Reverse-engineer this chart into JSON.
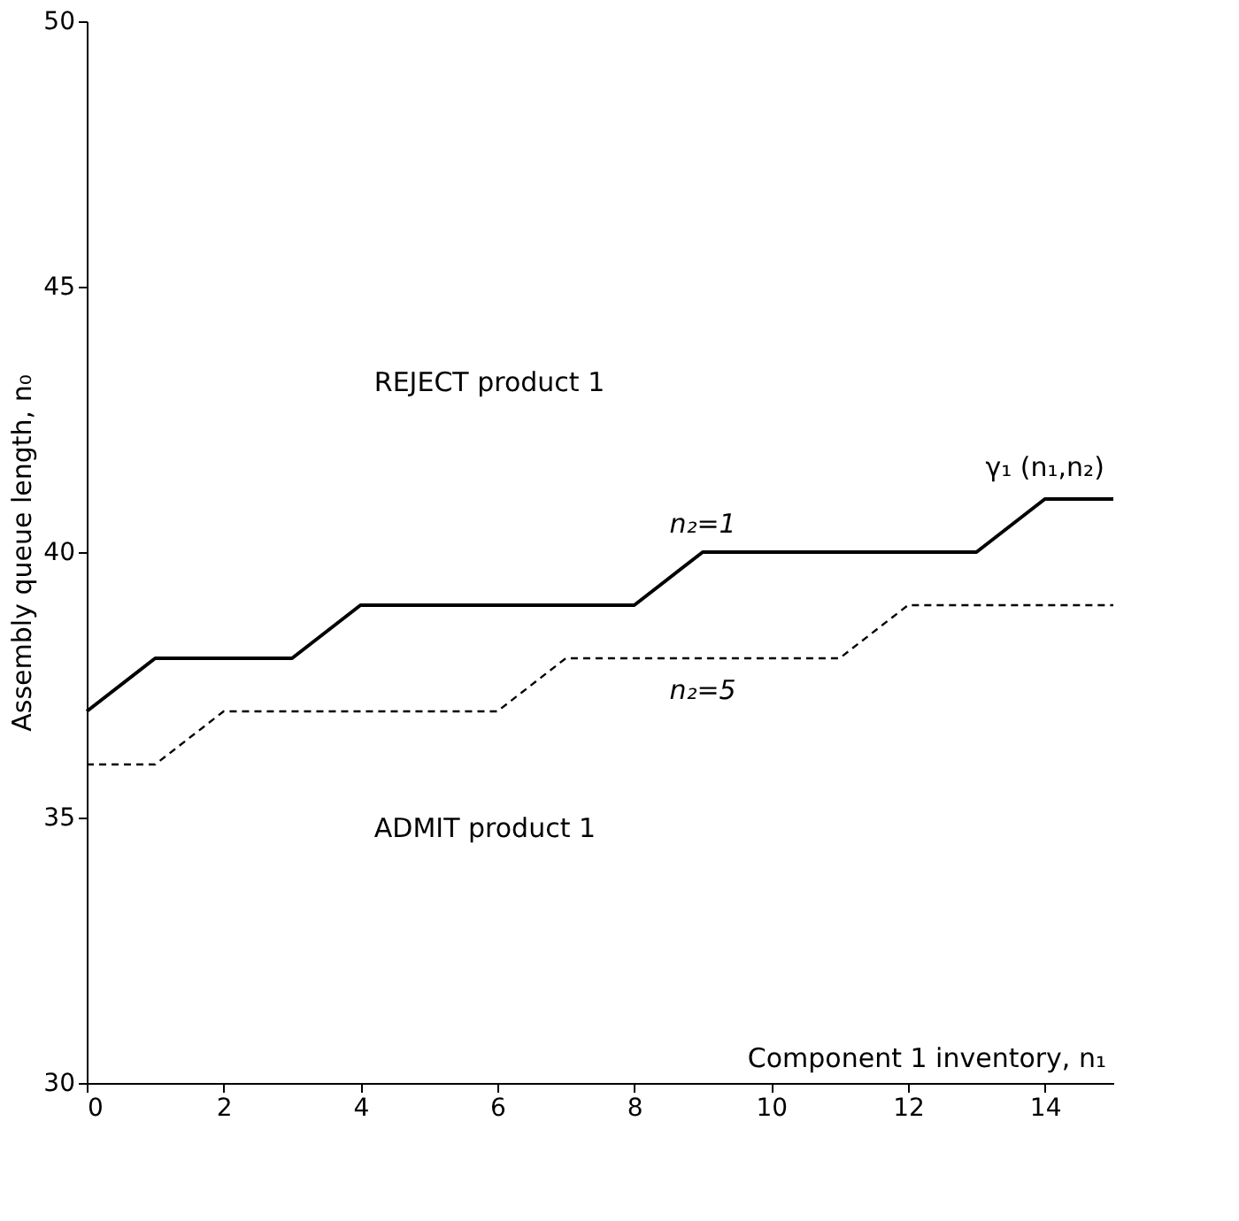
{
  "chart_data": {
    "type": "line",
    "xlabel": "Component 1 inventory, n₁",
    "ylabel": "Assembly queue length, n₀",
    "x": [
      0,
      1,
      2,
      3,
      4,
      5,
      6,
      7,
      8,
      9,
      10,
      11,
      12,
      13,
      14,
      15
    ],
    "series": [
      {
        "name": "n₂=1",
        "color": "#000000",
        "line_style": "solid",
        "values": [
          37,
          38,
          38,
          38,
          39,
          39,
          39,
          39,
          39,
          40,
          40,
          40,
          40,
          40,
          41,
          41
        ]
      },
      {
        "name": "n₂=5",
        "color": "#000000",
        "line_style": "dashed",
        "values": [
          36,
          36,
          37,
          37,
          37,
          37,
          37,
          38,
          38,
          38,
          38,
          38,
          39,
          39,
          39,
          39
        ]
      }
    ],
    "annotations": [
      "REJECT product 1",
      "ADMIT product 1",
      {
        "text": "γ₁ (n₁,n₂)",
        "x": 14,
        "y": 41
      }
    ],
    "xlim": [
      0,
      15
    ],
    "ylim": [
      30,
      50
    ],
    "xticks": [
      0,
      2,
      4,
      6,
      8,
      10,
      12,
      14
    ],
    "yticks": [
      30,
      35,
      40,
      45,
      50
    ],
    "grid": false,
    "marker": "none"
  }
}
